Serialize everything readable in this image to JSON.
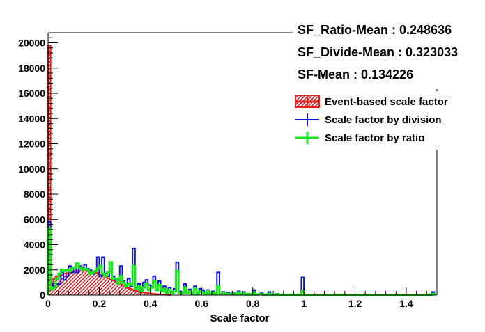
{
  "chart_data": {
    "type": "histogram",
    "xlabel": "Scale factor",
    "ylabel": "",
    "title": "",
    "xlim": [
      0,
      1.52
    ],
    "ylim": [
      0,
      20800
    ],
    "x_ticks": [
      0,
      0.2,
      0.4,
      0.6,
      0.8,
      1,
      1.2,
      1.4
    ],
    "x_tick_labels": [
      "0",
      "0.2",
      "0.4",
      "0.6",
      "0.8",
      "1",
      "1.2",
      "1.4"
    ],
    "y_ticks": [
      0,
      2000,
      4000,
      6000,
      8000,
      10000,
      12000,
      14000,
      16000,
      18000,
      20000
    ],
    "y_tick_labels": [
      "0",
      "2000",
      "4000",
      "6000",
      "8000",
      "10000",
      "12000",
      "14000",
      "16000",
      "18000",
      "20000"
    ],
    "stats": [
      "SF_Ratio-Mean : 0.248636",
      "SF_Divide-Mean : 0.323033",
      "SF-Mean : 0.134226"
    ],
    "legend_position": "top-right",
    "series": [
      {
        "name": "Event-based scale factor",
        "style": "hatched-fill",
        "color": "#e8201c",
        "bins": [
          [
            0.0,
            19800
          ],
          [
            0.01,
            800
          ],
          [
            0.02,
            1350
          ],
          [
            0.03,
            1500
          ],
          [
            0.04,
            1550
          ],
          [
            0.05,
            1600
          ],
          [
            0.06,
            1700
          ],
          [
            0.07,
            1750
          ],
          [
            0.08,
            1800
          ],
          [
            0.09,
            1850
          ],
          [
            0.1,
            1900
          ],
          [
            0.11,
            1950
          ],
          [
            0.12,
            1950
          ],
          [
            0.13,
            1950
          ],
          [
            0.14,
            1950
          ],
          [
            0.15,
            1950
          ],
          [
            0.16,
            1900
          ],
          [
            0.17,
            1850
          ],
          [
            0.18,
            1800
          ],
          [
            0.19,
            1750
          ],
          [
            0.2,
            1650
          ],
          [
            0.21,
            1550
          ],
          [
            0.22,
            1450
          ],
          [
            0.23,
            1350
          ],
          [
            0.24,
            1250
          ],
          [
            0.25,
            1150
          ],
          [
            0.26,
            1050
          ],
          [
            0.27,
            950
          ],
          [
            0.28,
            850
          ],
          [
            0.29,
            750
          ],
          [
            0.3,
            650
          ],
          [
            0.31,
            560
          ],
          [
            0.32,
            480
          ],
          [
            0.33,
            410
          ],
          [
            0.34,
            350
          ],
          [
            0.35,
            300
          ],
          [
            0.36,
            250
          ],
          [
            0.37,
            210
          ],
          [
            0.38,
            180
          ],
          [
            0.39,
            150
          ],
          [
            0.4,
            120
          ],
          [
            0.41,
            100
          ],
          [
            0.42,
            80
          ],
          [
            0.43,
            60
          ],
          [
            0.44,
            45
          ],
          [
            0.45,
            30
          ],
          [
            0.46,
            20
          ],
          [
            0.47,
            10
          ]
        ]
      },
      {
        "name": "Scale factor by division",
        "style": "step-line",
        "color": "#0d16d9",
        "bins": [
          [
            0.0,
            5800
          ],
          [
            0.01,
            900
          ],
          [
            0.02,
            700
          ],
          [
            0.03,
            800
          ],
          [
            0.04,
            900
          ],
          [
            0.05,
            1800
          ],
          [
            0.06,
            1200
          ],
          [
            0.07,
            1500
          ],
          [
            0.08,
            2300
          ],
          [
            0.09,
            1800
          ],
          [
            0.1,
            2100
          ],
          [
            0.11,
            1800
          ],
          [
            0.12,
            2300
          ],
          [
            0.13,
            2200
          ],
          [
            0.14,
            2400
          ],
          [
            0.15,
            2100
          ],
          [
            0.16,
            2000
          ],
          [
            0.17,
            1700
          ],
          [
            0.18,
            1900
          ],
          [
            0.19,
            3000
          ],
          [
            0.2,
            1500
          ],
          [
            0.21,
            3000
          ],
          [
            0.22,
            1700
          ],
          [
            0.23,
            1500
          ],
          [
            0.24,
            1900
          ],
          [
            0.25,
            1500
          ],
          [
            0.26,
            1200
          ],
          [
            0.27,
            1200
          ],
          [
            0.28,
            2300
          ],
          [
            0.29,
            1100
          ],
          [
            0.3,
            800
          ],
          [
            0.31,
            1300
          ],
          [
            0.32,
            700
          ],
          [
            0.33,
            3700
          ],
          [
            0.34,
            600
          ],
          [
            0.35,
            900
          ],
          [
            0.36,
            500
          ],
          [
            0.37,
            1000
          ],
          [
            0.38,
            1200
          ],
          [
            0.39,
            800
          ],
          [
            0.4,
            700
          ],
          [
            0.41,
            1500
          ],
          [
            0.42,
            400
          ],
          [
            0.43,
            1100
          ],
          [
            0.44,
            400
          ],
          [
            0.45,
            700
          ],
          [
            0.46,
            300
          ],
          [
            0.47,
            600
          ],
          [
            0.48,
            250
          ],
          [
            0.49,
            500
          ],
          [
            0.5,
            2600
          ],
          [
            0.51,
            300
          ],
          [
            0.52,
            250
          ],
          [
            0.53,
            900
          ],
          [
            0.54,
            200
          ],
          [
            0.55,
            450
          ],
          [
            0.56,
            150
          ],
          [
            0.57,
            700
          ],
          [
            0.58,
            150
          ],
          [
            0.59,
            500
          ],
          [
            0.6,
            400
          ],
          [
            0.61,
            150
          ],
          [
            0.62,
            400
          ],
          [
            0.63,
            100
          ],
          [
            0.64,
            300
          ],
          [
            0.65,
            100
          ],
          [
            0.66,
            1800
          ],
          [
            0.67,
            100
          ],
          [
            0.68,
            250
          ],
          [
            0.69,
            80
          ],
          [
            0.7,
            200
          ],
          [
            0.71,
            80
          ],
          [
            0.72,
            150
          ],
          [
            0.73,
            60
          ],
          [
            0.74,
            300
          ],
          [
            0.75,
            60
          ],
          [
            0.76,
            250
          ],
          [
            0.77,
            50
          ],
          [
            0.78,
            100
          ],
          [
            0.79,
            50
          ],
          [
            0.8,
            400
          ],
          [
            0.81,
            50
          ],
          [
            0.82,
            80
          ],
          [
            0.83,
            150
          ],
          [
            0.84,
            40
          ],
          [
            0.85,
            60
          ],
          [
            0.86,
            250
          ],
          [
            0.87,
            40
          ],
          [
            0.88,
            40
          ],
          [
            0.89,
            100
          ],
          [
            0.9,
            40
          ],
          [
            0.91,
            40
          ],
          [
            0.92,
            40
          ],
          [
            0.93,
            40
          ],
          [
            0.94,
            40
          ],
          [
            0.95,
            40
          ],
          [
            0.96,
            40
          ],
          [
            0.97,
            40
          ],
          [
            0.98,
            40
          ],
          [
            0.99,
            1400
          ],
          [
            1.0,
            40
          ],
          [
            1.01,
            40
          ],
          [
            1.02,
            40
          ],
          [
            1.03,
            40
          ],
          [
            1.04,
            40
          ],
          [
            1.05,
            40
          ],
          [
            1.1,
            40
          ],
          [
            1.15,
            40
          ],
          [
            1.2,
            40
          ],
          [
            1.25,
            40
          ],
          [
            1.3,
            40
          ],
          [
            1.35,
            40
          ],
          [
            1.4,
            40
          ],
          [
            1.45,
            40
          ],
          [
            1.5,
            250
          ]
        ]
      },
      {
        "name": "Scale factor by ratio",
        "style": "step-line",
        "color": "#19e61c",
        "bins": [
          [
            0.0,
            5300
          ],
          [
            0.01,
            500
          ],
          [
            0.02,
            600
          ],
          [
            0.03,
            1300
          ],
          [
            0.04,
            1700
          ],
          [
            0.05,
            2000
          ],
          [
            0.06,
            1900
          ],
          [
            0.07,
            2000
          ],
          [
            0.08,
            1900
          ],
          [
            0.09,
            2100
          ],
          [
            0.1,
            2200
          ],
          [
            0.11,
            2500
          ],
          [
            0.12,
            2200
          ],
          [
            0.13,
            2000
          ],
          [
            0.14,
            2100
          ],
          [
            0.15,
            2000
          ],
          [
            0.16,
            1700
          ],
          [
            0.17,
            1800
          ],
          [
            0.18,
            1900
          ],
          [
            0.19,
            2100
          ],
          [
            0.2,
            2300
          ],
          [
            0.21,
            1700
          ],
          [
            0.22,
            1500
          ],
          [
            0.23,
            1800
          ],
          [
            0.24,
            2600
          ],
          [
            0.25,
            1300
          ],
          [
            0.26,
            1300
          ],
          [
            0.27,
            900
          ],
          [
            0.28,
            1500
          ],
          [
            0.29,
            1000
          ],
          [
            0.3,
            700
          ],
          [
            0.31,
            900
          ],
          [
            0.32,
            800
          ],
          [
            0.33,
            2300
          ],
          [
            0.34,
            500
          ],
          [
            0.35,
            700
          ],
          [
            0.36,
            300
          ],
          [
            0.37,
            600
          ],
          [
            0.38,
            900
          ],
          [
            0.39,
            400
          ],
          [
            0.4,
            600
          ],
          [
            0.41,
            1100
          ],
          [
            0.42,
            400
          ],
          [
            0.43,
            800
          ],
          [
            0.44,
            300
          ],
          [
            0.45,
            500
          ],
          [
            0.46,
            200
          ],
          [
            0.47,
            400
          ],
          [
            0.48,
            150
          ],
          [
            0.49,
            300
          ],
          [
            0.5,
            1900
          ],
          [
            0.51,
            200
          ],
          [
            0.52,
            150
          ],
          [
            0.53,
            600
          ],
          [
            0.54,
            150
          ],
          [
            0.55,
            300
          ],
          [
            0.56,
            100
          ],
          [
            0.57,
            500
          ],
          [
            0.58,
            100
          ],
          [
            0.59,
            300
          ],
          [
            0.6,
            200
          ],
          [
            0.61,
            100
          ],
          [
            0.62,
            300
          ],
          [
            0.63,
            80
          ],
          [
            0.64,
            200
          ],
          [
            0.65,
            80
          ],
          [
            0.66,
            700
          ],
          [
            0.67,
            80
          ],
          [
            0.68,
            150
          ],
          [
            0.69,
            60
          ],
          [
            0.7,
            100
          ],
          [
            0.71,
            50
          ],
          [
            0.72,
            100
          ],
          [
            0.73,
            50
          ],
          [
            0.74,
            200
          ],
          [
            0.75,
            50
          ],
          [
            0.76,
            150
          ],
          [
            0.77,
            40
          ],
          [
            0.78,
            80
          ],
          [
            0.79,
            40
          ],
          [
            0.8,
            200
          ],
          [
            0.81,
            40
          ],
          [
            0.82,
            60
          ],
          [
            0.83,
            80
          ],
          [
            0.84,
            30
          ],
          [
            0.85,
            40
          ],
          [
            0.86,
            100
          ],
          [
            0.87,
            30
          ],
          [
            0.88,
            30
          ],
          [
            0.89,
            60
          ],
          [
            0.9,
            30
          ],
          [
            0.91,
            30
          ],
          [
            0.92,
            30
          ],
          [
            0.93,
            30
          ],
          [
            0.94,
            30
          ],
          [
            0.95,
            30
          ],
          [
            0.96,
            30
          ],
          [
            0.97,
            30
          ],
          [
            0.98,
            30
          ],
          [
            0.99,
            300
          ],
          [
            1.0,
            30
          ],
          [
            1.05,
            30
          ],
          [
            1.1,
            30
          ],
          [
            1.15,
            30
          ],
          [
            1.2,
            30
          ],
          [
            1.25,
            30
          ],
          [
            1.3,
            30
          ],
          [
            1.35,
            30
          ],
          [
            1.4,
            30
          ],
          [
            1.45,
            30
          ],
          [
            1.5,
            100
          ]
        ]
      }
    ]
  }
}
